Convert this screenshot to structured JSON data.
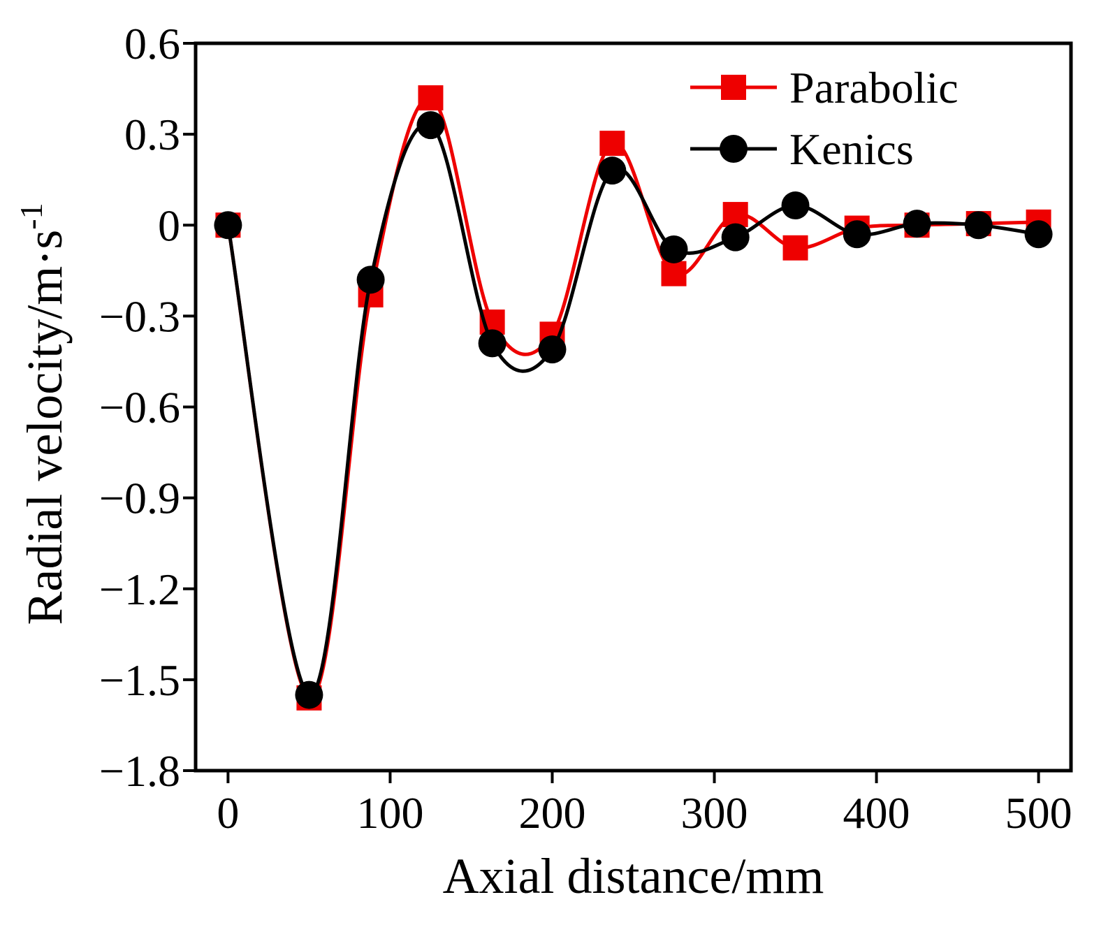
{
  "chart_data": {
    "type": "line",
    "title": "",
    "xlabel": "Axial distance/mm",
    "ylabel": "Radial velocity/m·s",
    "ylabel_sup": "-1",
    "xlim": [
      -20,
      520
    ],
    "ylim": [
      -1.8,
      0.6
    ],
    "xticks": [
      0,
      100,
      200,
      300,
      400,
      500
    ],
    "xtick_labels": [
      "0",
      "100",
      "200",
      "300",
      "400",
      "500"
    ],
    "yticks": [
      0.6,
      0.3,
      0,
      -0.3,
      -0.6,
      -0.9,
      -1.2,
      -1.5,
      -1.8
    ],
    "ytick_labels": [
      "0.6",
      "0.3",
      "0",
      "−0.3",
      "−0.6",
      "−0.9",
      "−1.2",
      "−1.5",
      "−1.8"
    ],
    "grid": false,
    "legend_position": "top-right",
    "series": [
      {
        "name": "Parabolic",
        "color": "#ee0000",
        "marker": "square",
        "x": [
          0,
          50,
          88,
          125,
          163,
          200,
          237,
          275,
          313,
          350,
          388,
          425,
          463,
          500
        ],
        "y": [
          0.0,
          -1.56,
          -0.23,
          0.42,
          -0.32,
          -0.36,
          0.27,
          -0.16,
          0.035,
          -0.075,
          -0.01,
          0.0,
          0.005,
          0.01
        ]
      },
      {
        "name": "Kenics",
        "color": "#000000",
        "marker": "circle",
        "x": [
          0,
          50,
          88,
          125,
          163,
          200,
          237,
          275,
          313,
          350,
          388,
          425,
          463,
          500
        ],
        "y": [
          0.0,
          -1.55,
          -0.18,
          0.33,
          -0.39,
          -0.41,
          0.18,
          -0.08,
          -0.04,
          0.065,
          -0.03,
          0.005,
          0.0,
          -0.03
        ]
      }
    ]
  }
}
